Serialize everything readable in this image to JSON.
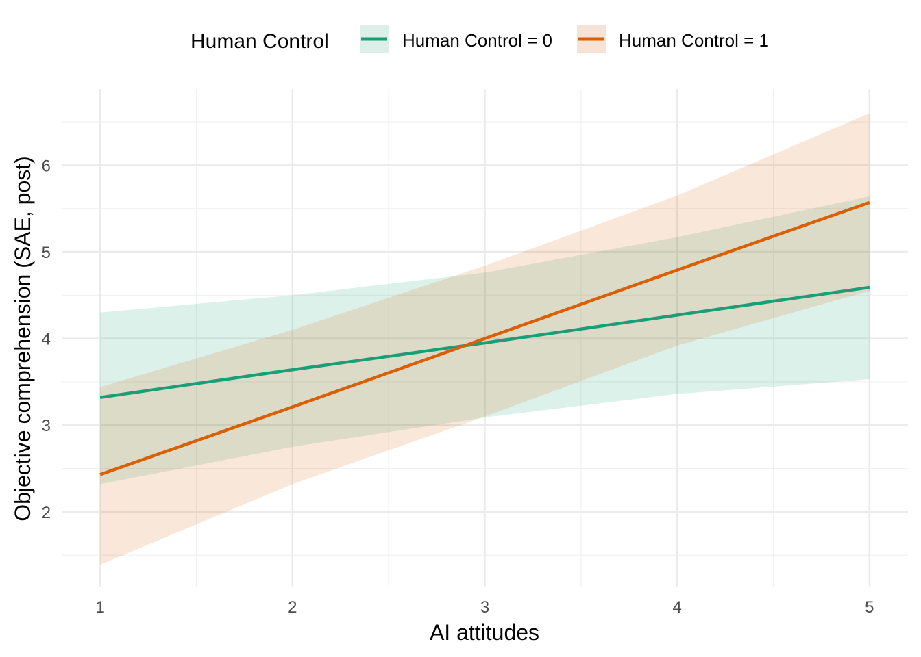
{
  "chart_data": {
    "type": "line",
    "title": "",
    "xlabel": "AI attitudes",
    "ylabel": "Objective comprehension (SAE, post)",
    "xlim": [
      0.8,
      5.2
    ],
    "ylim": [
      1.13,
      6.88
    ],
    "xticks": [
      1,
      2,
      3,
      4,
      5
    ],
    "yticks": [
      2,
      3,
      4,
      5,
      6
    ],
    "grid": true,
    "legend": {
      "title": "Human Control",
      "placement": "top"
    },
    "x": [
      1,
      2,
      3,
      4,
      5
    ],
    "series": [
      {
        "name": "Human Control = 0",
        "color": "#1B9E77",
        "fill": "#dcefe8",
        "values": [
          3.32,
          3.64,
          3.95,
          4.27,
          4.59
        ],
        "lower": [
          2.32,
          2.75,
          3.09,
          3.36,
          3.53
        ],
        "upper": [
          4.3,
          4.5,
          4.76,
          5.17,
          5.64
        ]
      },
      {
        "name": "Human Control = 1",
        "color": "#D95F02",
        "fill": "#f7e2d6",
        "values": [
          2.43,
          3.21,
          4.0,
          4.79,
          5.57
        ],
        "lower": [
          1.39,
          2.32,
          3.1,
          3.92,
          4.55
        ],
        "upper": [
          3.44,
          4.1,
          4.84,
          5.65,
          6.6
        ]
      }
    ]
  }
}
